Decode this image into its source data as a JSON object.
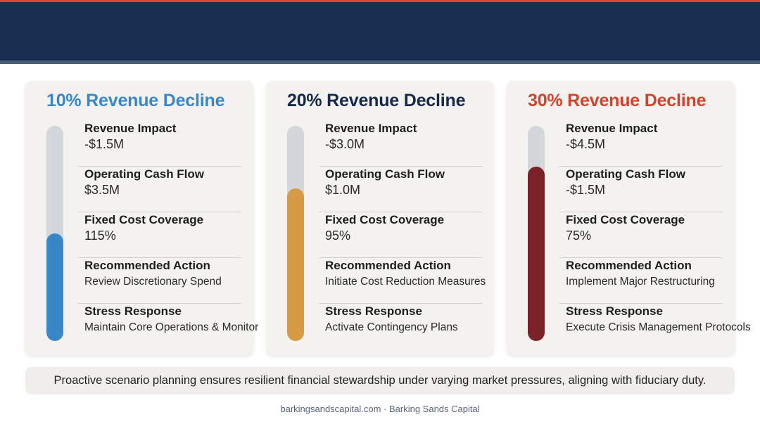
{
  "colors": {
    "header": "#1a2e52",
    "accent_stripe": "#d64a3a",
    "scenario_10": "#3a87c8",
    "scenario_20": "#d89b45",
    "scenario_30": "#7a2228",
    "title_20": "#16294c",
    "title_30": "#d1432f"
  },
  "scenarios": [
    {
      "title": "10% Revenue Decline",
      "gauge_fill_fraction": 0.5,
      "metrics": [
        {
          "label": "Revenue Impact",
          "value": "-$1.5M"
        },
        {
          "label": "Operating Cash Flow",
          "value": "$3.5M"
        },
        {
          "label": "Fixed Cost Coverage",
          "value": "115%"
        },
        {
          "label": "Recommended Action",
          "value": "Review Discretionary Spend"
        },
        {
          "label": "Stress Response",
          "value": "Maintain Core Operations & Monitor"
        }
      ]
    },
    {
      "title": "20% Revenue Decline",
      "gauge_fill_fraction": 0.71,
      "metrics": [
        {
          "label": "Revenue Impact",
          "value": "-$3.0M"
        },
        {
          "label": "Operating Cash Flow",
          "value": "$1.0M"
        },
        {
          "label": "Fixed Cost Coverage",
          "value": "95%"
        },
        {
          "label": "Recommended Action",
          "value": "Initiate Cost Reduction Measures"
        },
        {
          "label": "Stress Response",
          "value": "Activate Contingency Plans"
        }
      ]
    },
    {
      "title": "30% Revenue Decline",
      "gauge_fill_fraction": 0.81,
      "metrics": [
        {
          "label": "Revenue Impact",
          "value": "-$4.5M"
        },
        {
          "label": "Operating Cash Flow",
          "value": "-$1.5M"
        },
        {
          "label": "Fixed Cost Coverage",
          "value": "75%"
        },
        {
          "label": "Recommended Action",
          "value": "Implement Major Restructuring"
        },
        {
          "label": "Stress Response",
          "value": "Execute Crisis Management Protocols"
        }
      ]
    }
  ],
  "summary": "Proactive scenario planning ensures resilient financial stewardship under varying market pressures, aligning with fiduciary duty.",
  "footer": "barkingsandscapital.com · Barking Sands Capital"
}
